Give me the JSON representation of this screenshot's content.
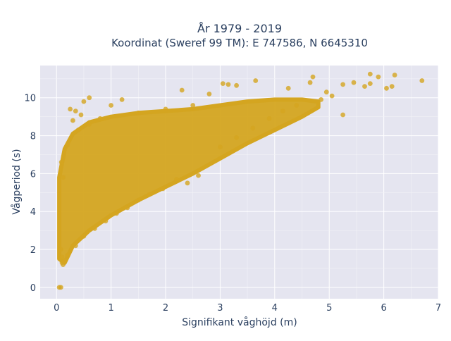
{
  "chart_data": {
    "type": "scatter",
    "title": "År 1979 - 2019",
    "subtitle": "Koordinat (Sweref 99 TM): E 747586, N 6645310",
    "xlabel": "Signifikant våghöjd (m)",
    "ylabel": "Vågperiod (s)",
    "xlim": [
      -0.3,
      7.0
    ],
    "ylim": [
      -0.6,
      11.7
    ],
    "x_ticks": [
      "0",
      "1",
      "2",
      "3",
      "4",
      "5",
      "6",
      "7"
    ],
    "y_ticks": [
      "0",
      "2",
      "4",
      "6",
      "8",
      "10"
    ],
    "grid": true,
    "marker_color": "#d4a520",
    "plot_background": "#e5e5f0",
    "series": [
      {
        "points": [
          [
            0.05,
            0.0
          ],
          [
            0.08,
            0.0
          ],
          [
            0.12,
            1.2
          ],
          [
            0.1,
            1.6
          ],
          [
            0.08,
            2.0
          ],
          [
            0.15,
            1.4
          ],
          [
            0.25,
            9.4
          ],
          [
            0.35,
            9.3
          ],
          [
            0.5,
            9.8
          ],
          [
            0.6,
            10.0
          ],
          [
            0.3,
            8.8
          ],
          [
            0.45,
            9.1
          ],
          [
            1.0,
            9.6
          ],
          [
            1.2,
            9.9
          ],
          [
            2.3,
            10.4
          ],
          [
            2.8,
            10.2
          ],
          [
            3.05,
            10.75
          ],
          [
            3.15,
            10.7
          ],
          [
            3.3,
            10.65
          ],
          [
            3.65,
            10.9
          ],
          [
            4.25,
            10.5
          ],
          [
            4.7,
            11.1
          ],
          [
            4.65,
            10.8
          ],
          [
            4.95,
            10.3
          ],
          [
            5.05,
            10.1
          ],
          [
            5.25,
            10.7
          ],
          [
            5.45,
            10.8
          ],
          [
            5.65,
            10.6
          ],
          [
            5.75,
            11.25
          ],
          [
            5.75,
            10.75
          ],
          [
            5.9,
            11.1
          ],
          [
            6.05,
            10.5
          ],
          [
            6.15,
            10.6
          ],
          [
            6.2,
            11.2
          ],
          [
            6.7,
            10.9
          ],
          [
            5.25,
            9.1
          ],
          [
            4.85,
            9.9
          ],
          [
            4.4,
            9.6
          ],
          [
            4.15,
            9.3
          ],
          [
            3.9,
            8.9
          ],
          [
            3.6,
            8.4
          ],
          [
            3.3,
            7.9
          ],
          [
            3.0,
            7.4
          ],
          [
            2.6,
            5.9
          ],
          [
            2.4,
            5.5
          ],
          [
            2.2,
            5.7
          ],
          [
            1.95,
            5.2
          ],
          [
            1.7,
            4.9
          ],
          [
            1.5,
            4.6
          ],
          [
            1.3,
            4.2
          ],
          [
            1.1,
            3.9
          ],
          [
            0.9,
            3.5
          ],
          [
            0.7,
            3.1
          ],
          [
            0.5,
            2.7
          ],
          [
            0.35,
            2.2
          ],
          [
            0.2,
            1.7
          ],
          [
            0.1,
            1.3
          ],
          [
            0.09,
            6.6
          ],
          [
            0.12,
            5.8
          ],
          [
            0.2,
            7.5
          ],
          [
            0.4,
            8.3
          ],
          [
            0.6,
            8.6
          ],
          [
            0.8,
            8.9
          ],
          [
            1.5,
            9.2
          ],
          [
            2.0,
            9.4
          ],
          [
            2.5,
            9.6
          ]
        ],
        "density_region": {
          "upper": [
            [
              0.05,
              5.8
            ],
            [
              0.15,
              7.3
            ],
            [
              0.3,
              8.1
            ],
            [
              0.6,
              8.7
            ],
            [
              1.0,
              9.0
            ],
            [
              1.5,
              9.2
            ],
            [
              2.0,
              9.3
            ],
            [
              2.5,
              9.4
            ],
            [
              3.0,
              9.6
            ],
            [
              3.5,
              9.8
            ],
            [
              4.0,
              9.9
            ],
            [
              4.5,
              9.9
            ],
            [
              4.8,
              9.8
            ]
          ],
          "lower": [
            [
              4.8,
              9.5
            ],
            [
              4.5,
              9.0
            ],
            [
              4.0,
              8.3
            ],
            [
              3.5,
              7.6
            ],
            [
              3.0,
              6.8
            ],
            [
              2.5,
              6.0
            ],
            [
              2.0,
              5.3
            ],
            [
              1.5,
              4.6
            ],
            [
              1.0,
              3.8
            ],
            [
              0.6,
              3.0
            ],
            [
              0.3,
              2.2
            ],
            [
              0.15,
              1.3
            ],
            [
              0.05,
              1.5
            ]
          ]
        }
      }
    ]
  }
}
